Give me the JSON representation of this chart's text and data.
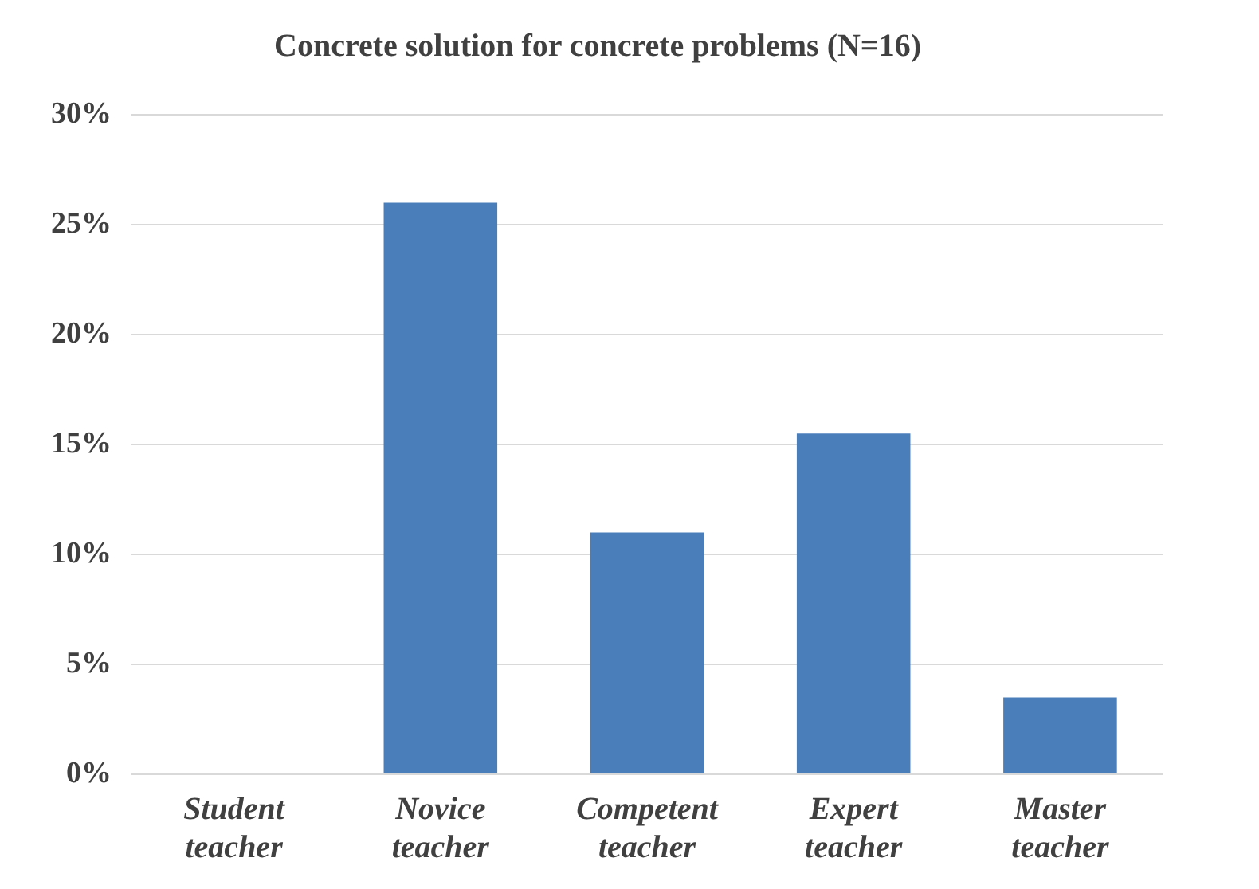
{
  "chart_data": {
    "type": "bar",
    "title": "Concrete solution for concrete problems (N=16)",
    "categories": [
      "Student teacher",
      "Novice teacher",
      "Competent teacher",
      "Expert teacher",
      "Master teacher"
    ],
    "values": [
      0,
      26,
      11,
      15.5,
      3.5
    ],
    "color": "#4a7ebb",
    "ylim": [
      0,
      30
    ],
    "yticks": [
      {
        "value": 0,
        "label": "0%"
      },
      {
        "value": 5,
        "label": "5%"
      },
      {
        "value": 10,
        "label": "10%"
      },
      {
        "value": 15,
        "label": "15%"
      },
      {
        "value": 20,
        "label": "20%"
      },
      {
        "value": 25,
        "label": "25%"
      },
      {
        "value": 30,
        "label": "30%"
      }
    ],
    "grid": "y"
  }
}
